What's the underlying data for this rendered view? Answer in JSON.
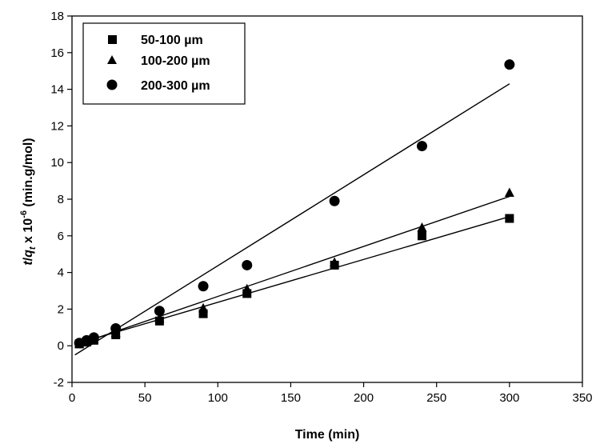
{
  "chart_data": {
    "type": "scatter",
    "xlabel": "Time (min)",
    "ylabel_parts": {
      "t": "t",
      "slash": "/",
      "q": "q",
      "sub": "t",
      "mid": " x 10",
      "exp": "-6",
      "unit": " (min.g/mol)"
    },
    "xlim": [
      0,
      350
    ],
    "ylim": [
      -2,
      18
    ],
    "xticks": [
      0,
      50,
      100,
      150,
      200,
      250,
      300,
      350
    ],
    "yticks": [
      -2,
      0,
      2,
      4,
      6,
      8,
      10,
      12,
      14,
      16,
      18
    ],
    "grid": false,
    "legend_position": "top-left",
    "series": [
      {
        "name": "50-100 µm",
        "marker": "square",
        "x": [
          5,
          10,
          15,
          30,
          60,
          90,
          120,
          180,
          240,
          300
        ],
        "y": [
          0.1,
          0.2,
          0.3,
          0.6,
          1.35,
          1.75,
          2.85,
          4.4,
          6.0,
          6.95
        ],
        "fit": {
          "x": [
            5,
            300
          ],
          "y": [
            0.15,
            7.05
          ]
        }
      },
      {
        "name": "100-200 µm",
        "marker": "triangle",
        "x": [
          5,
          10,
          15,
          30,
          60,
          90,
          120,
          180,
          240,
          300
        ],
        "y": [
          0.12,
          0.25,
          0.35,
          0.7,
          1.5,
          2.05,
          3.1,
          4.55,
          6.45,
          8.35
        ],
        "fit": {
          "x": [
            5,
            300
          ],
          "y": [
            0.1,
            8.15
          ]
        }
      },
      {
        "name": "200-300 µm",
        "marker": "circle",
        "x": [
          5,
          10,
          15,
          30,
          60,
          90,
          120,
          180,
          240,
          300
        ],
        "y": [
          0.15,
          0.3,
          0.45,
          0.95,
          1.9,
          3.25,
          4.4,
          7.9,
          10.9,
          15.35
        ],
        "fit": {
          "x": [
            2,
            300
          ],
          "y": [
            -0.5,
            14.3
          ]
        }
      }
    ]
  },
  "colors": {
    "marker": "#000000",
    "line": "#000000"
  }
}
